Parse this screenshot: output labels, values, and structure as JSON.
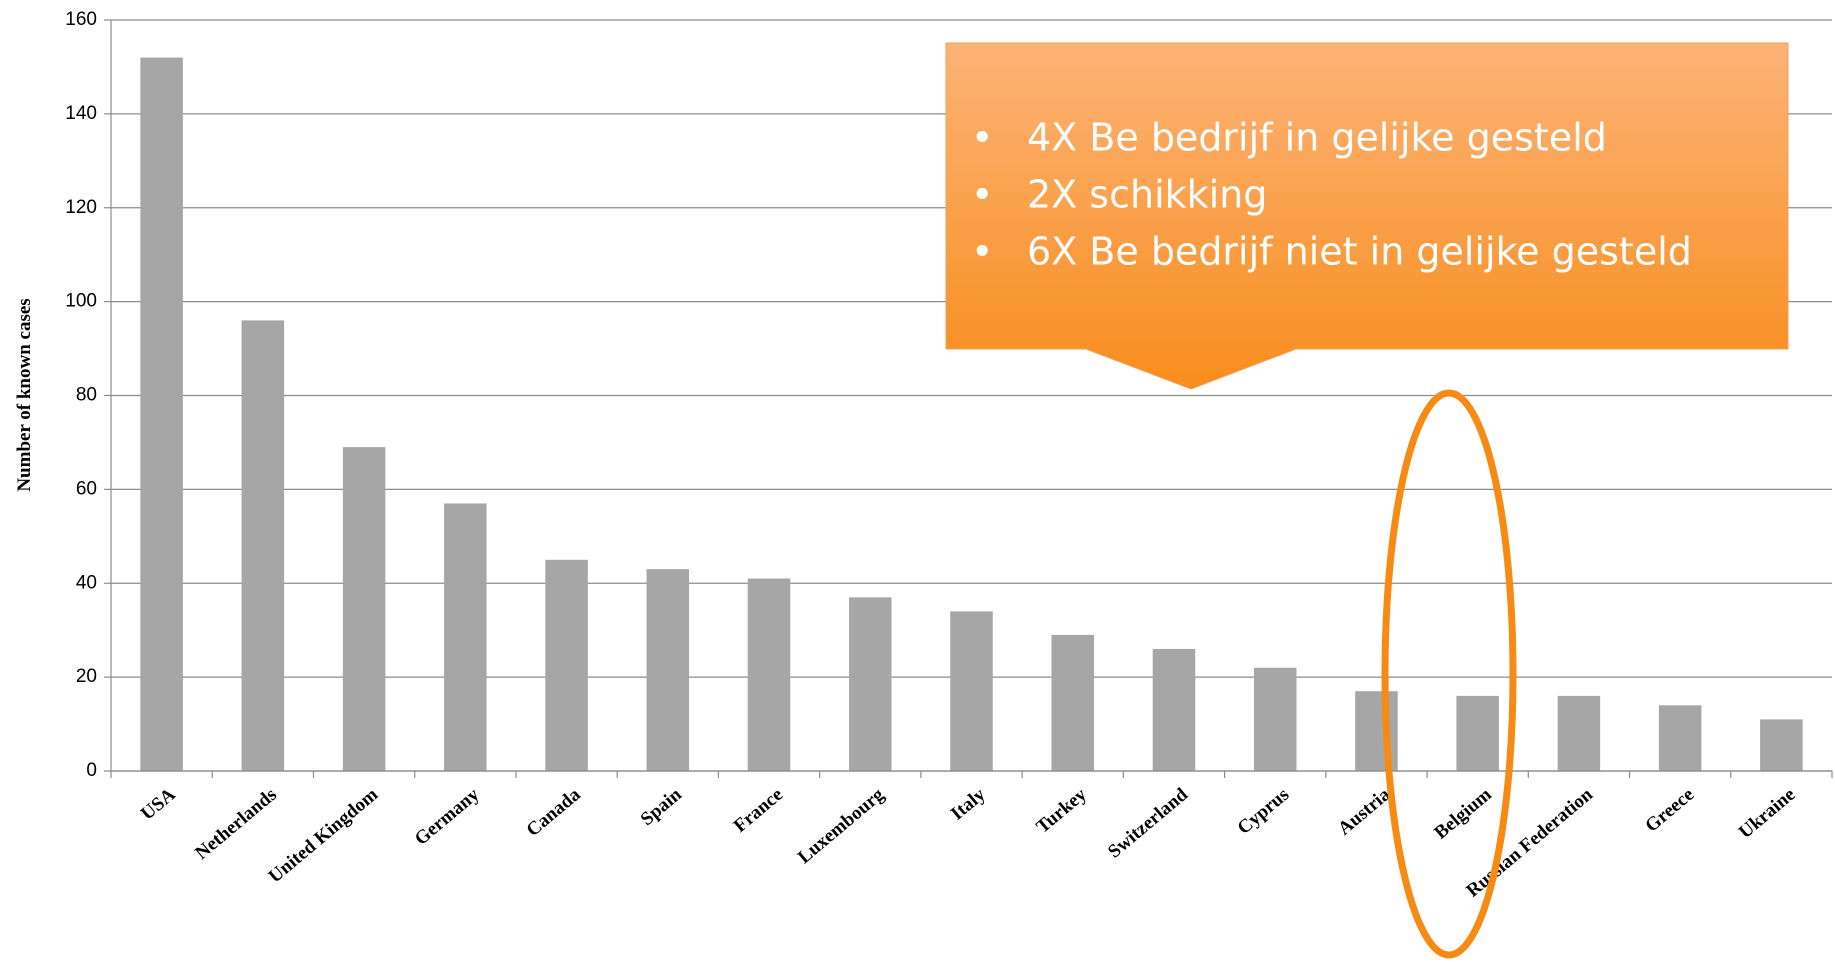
{
  "chart_data": {
    "type": "bar",
    "ylabel": "Number of known cases",
    "categories": [
      "USA",
      "Netherlands",
      "United Kingdom",
      "Germany",
      "Canada",
      "Spain",
      "France",
      "Luxembourg",
      "Italy",
      "Turkey",
      "Switzerland",
      "Cyprus",
      "Austria",
      "Belgium",
      "Russian Federation",
      "Greece",
      "Ukraine"
    ],
    "values": [
      152,
      96,
      69,
      57,
      45,
      43,
      41,
      37,
      34,
      29,
      26,
      22,
      17,
      16,
      16,
      14,
      11
    ],
    "color": "#a6a6a6",
    "ylim": [
      0,
      160
    ],
    "yticks": [
      0,
      20,
      40,
      60,
      80,
      100,
      120,
      140,
      160
    ],
    "grid": true,
    "annotation": {
      "bullets": [
        "4X Be bedrijf in gelijke gesteld",
        "2X schikking",
        "6X Be bedrijf niet in gelijke gesteld"
      ]
    }
  }
}
